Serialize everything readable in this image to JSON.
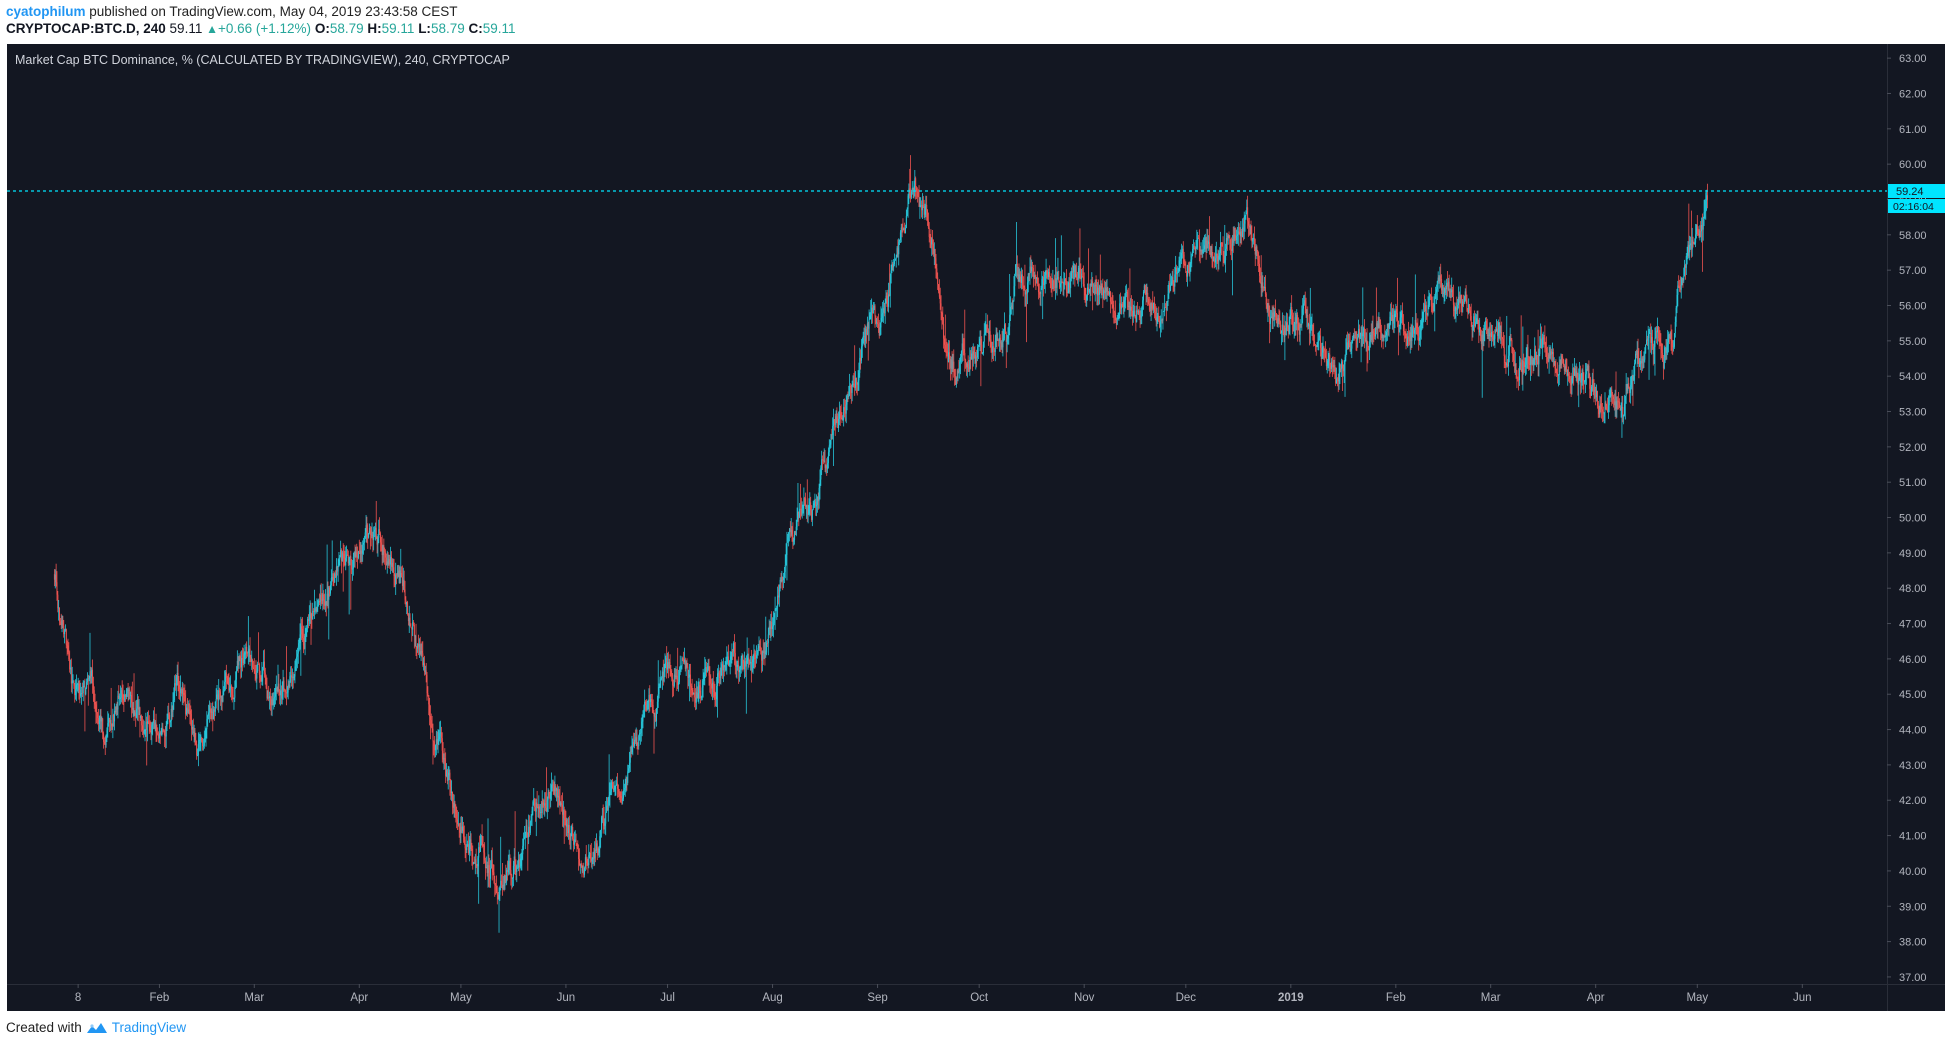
{
  "header": {
    "author": "cyatophilum",
    "published_text": "published on TradingView.com, May 04, 2019 23:43:58 CEST",
    "symbol": "CRYPTOCAP:BTC.D, 240",
    "last": "59.11",
    "change": "+0.66 (+1.12%)",
    "open_label": "O:",
    "open": "58.79",
    "high_label": "H:",
    "high": "59.11",
    "low_label": "L:",
    "low": "58.79",
    "close_label": "C:",
    "close": "59.11"
  },
  "footer": {
    "created_with": "Created with",
    "brand": "TradingView"
  },
  "colors": {
    "background": "#131722",
    "up": "#26c6da",
    "down": "#ef5350",
    "price_line": "#00e5ff",
    "axis_text": "#b2b5be"
  },
  "chart_data": {
    "type": "line",
    "style": "candlestick",
    "title": "Market Cap BTC Dominance, % (CALCULATED BY TRADINGVIEW), 240, CRYPTOCAP",
    "ylim": [
      36.8,
      63.4
    ],
    "y_ticks": [
      "37.00",
      "38.00",
      "39.00",
      "40.00",
      "41.00",
      "42.00",
      "43.00",
      "44.00",
      "45.00",
      "46.00",
      "47.00",
      "48.00",
      "49.00",
      "50.00",
      "51.00",
      "52.00",
      "53.00",
      "54.00",
      "55.00",
      "56.00",
      "57.00",
      "58.00",
      "59.00",
      "60.00",
      "61.00",
      "62.00",
      "63.00"
    ],
    "x_ticks": [
      "8",
      "Feb",
      "Mar",
      "Apr",
      "May",
      "Jun",
      "Jul",
      "Aug",
      "Sep",
      "Oct",
      "Nov",
      "Dec",
      "2019",
      "Feb",
      "Mar",
      "Apr",
      "May",
      "Jun"
    ],
    "x_tick_dates": [
      "2018-01-08",
      "2018-02-01",
      "2018-03-01",
      "2018-04-01",
      "2018-05-01",
      "2018-06-01",
      "2018-07-01",
      "2018-08-01",
      "2018-09-01",
      "2018-10-01",
      "2018-11-01",
      "2018-12-01",
      "2019-01-01",
      "2019-02-01",
      "2019-03-01",
      "2019-04-01",
      "2019-05-01",
      "2019-06-01"
    ],
    "x_range": [
      "2017-12-18",
      "2019-06-26"
    ],
    "price_line": 59.24,
    "price_label": "59.24",
    "countdown": "02:16:04",
    "anchors": {
      "x": [
        "2018-01-01",
        "2018-01-04",
        "2018-01-07",
        "2018-01-12",
        "2018-01-16",
        "2018-01-20",
        "2018-01-25",
        "2018-01-30",
        "2018-02-02",
        "2018-02-06",
        "2018-02-12",
        "2018-02-18",
        "2018-02-24",
        "2018-02-28",
        "2018-03-03",
        "2018-03-07",
        "2018-03-12",
        "2018-03-18",
        "2018-03-25",
        "2018-03-30",
        "2018-04-02",
        "2018-04-07",
        "2018-04-12",
        "2018-04-18",
        "2018-04-22",
        "2018-04-26",
        "2018-04-30",
        "2018-05-03",
        "2018-05-07",
        "2018-05-12",
        "2018-05-18",
        "2018-05-22",
        "2018-05-27",
        "2018-06-01",
        "2018-06-05",
        "2018-06-10",
        "2018-06-15",
        "2018-06-20",
        "2018-06-25",
        "2018-06-30",
        "2018-07-05",
        "2018-07-10",
        "2018-07-15",
        "2018-07-18",
        "2018-07-21",
        "2018-07-25",
        "2018-07-28",
        "2018-08-02",
        "2018-08-06",
        "2018-08-10",
        "2018-08-13",
        "2018-08-16",
        "2018-08-19",
        "2018-08-24",
        "2018-08-29",
        "2018-09-02",
        "2018-09-06",
        "2018-09-09",
        "2018-09-12",
        "2018-09-15",
        "2018-09-18",
        "2018-09-21",
        "2018-09-25",
        "2018-09-30",
        "2018-10-05",
        "2018-10-09",
        "2018-10-12",
        "2018-10-18",
        "2018-10-25",
        "2018-11-01",
        "2018-11-06",
        "2018-11-10",
        "2018-11-15",
        "2018-11-20",
        "2018-11-25",
        "2018-11-30",
        "2018-12-04",
        "2018-12-09",
        "2018-12-14",
        "2018-12-18",
        "2018-12-22",
        "2018-12-26",
        "2018-12-31",
        "2019-01-05",
        "2019-01-10",
        "2019-01-15",
        "2019-01-20",
        "2019-01-25",
        "2019-01-30",
        "2019-02-04",
        "2019-02-09",
        "2019-02-14",
        "2019-02-20",
        "2019-02-25",
        "2019-03-02",
        "2019-03-08",
        "2019-03-14",
        "2019-03-20",
        "2019-03-26",
        "2019-04-01",
        "2019-04-02",
        "2019-04-05",
        "2019-04-09",
        "2019-04-13",
        "2019-04-17",
        "2019-04-21",
        "2019-04-24",
        "2019-04-27",
        "2019-04-30",
        "2019-05-02",
        "2019-05-04"
      ],
      "y": [
        48.4,
        46.5,
        44.5,
        45.3,
        43.6,
        45.0,
        44.7,
        44.2,
        43.5,
        44.8,
        43.6,
        44.8,
        45.8,
        46.0,
        45.5,
        44.7,
        45.6,
        47.2,
        48.5,
        48.8,
        49.7,
        49.3,
        48.6,
        46.5,
        44.2,
        42.8,
        41.4,
        40.5,
        40.8,
        39.9,
        40.3,
        41.2,
        42.6,
        41.3,
        40.4,
        41.0,
        42.6,
        43.3,
        44.2,
        45.3,
        45.8,
        45.1,
        45.4,
        46.2,
        46.0,
        45.6,
        45.5,
        47.3,
        49.6,
        50.2,
        50.1,
        51.3,
        52.1,
        53.5,
        55.5,
        55.6,
        57.2,
        58.4,
        59.7,
        58.8,
        57.5,
        55.2,
        54.2,
        54.7,
        55.3,
        55.2,
        56.7,
        56.7,
        56.7,
        56.7,
        56.4,
        55.7,
        55.9,
        56.0,
        56.2,
        57.3,
        57.4,
        57.6,
        57.8,
        58.5,
        57.6,
        55.9,
        55.6,
        55.4,
        54.5,
        54.0,
        54.9,
        55.3,
        55.4,
        55.2,
        55.6,
        56.3,
        56.0,
        55.6,
        55.2,
        54.9,
        54.6,
        54.6,
        54.2,
        53.6,
        53.5,
        53.3,
        53.1,
        54.5,
        54.7,
        54.8,
        55.0,
        57.3,
        58.0,
        58.3,
        59.1
      ]
    }
  }
}
